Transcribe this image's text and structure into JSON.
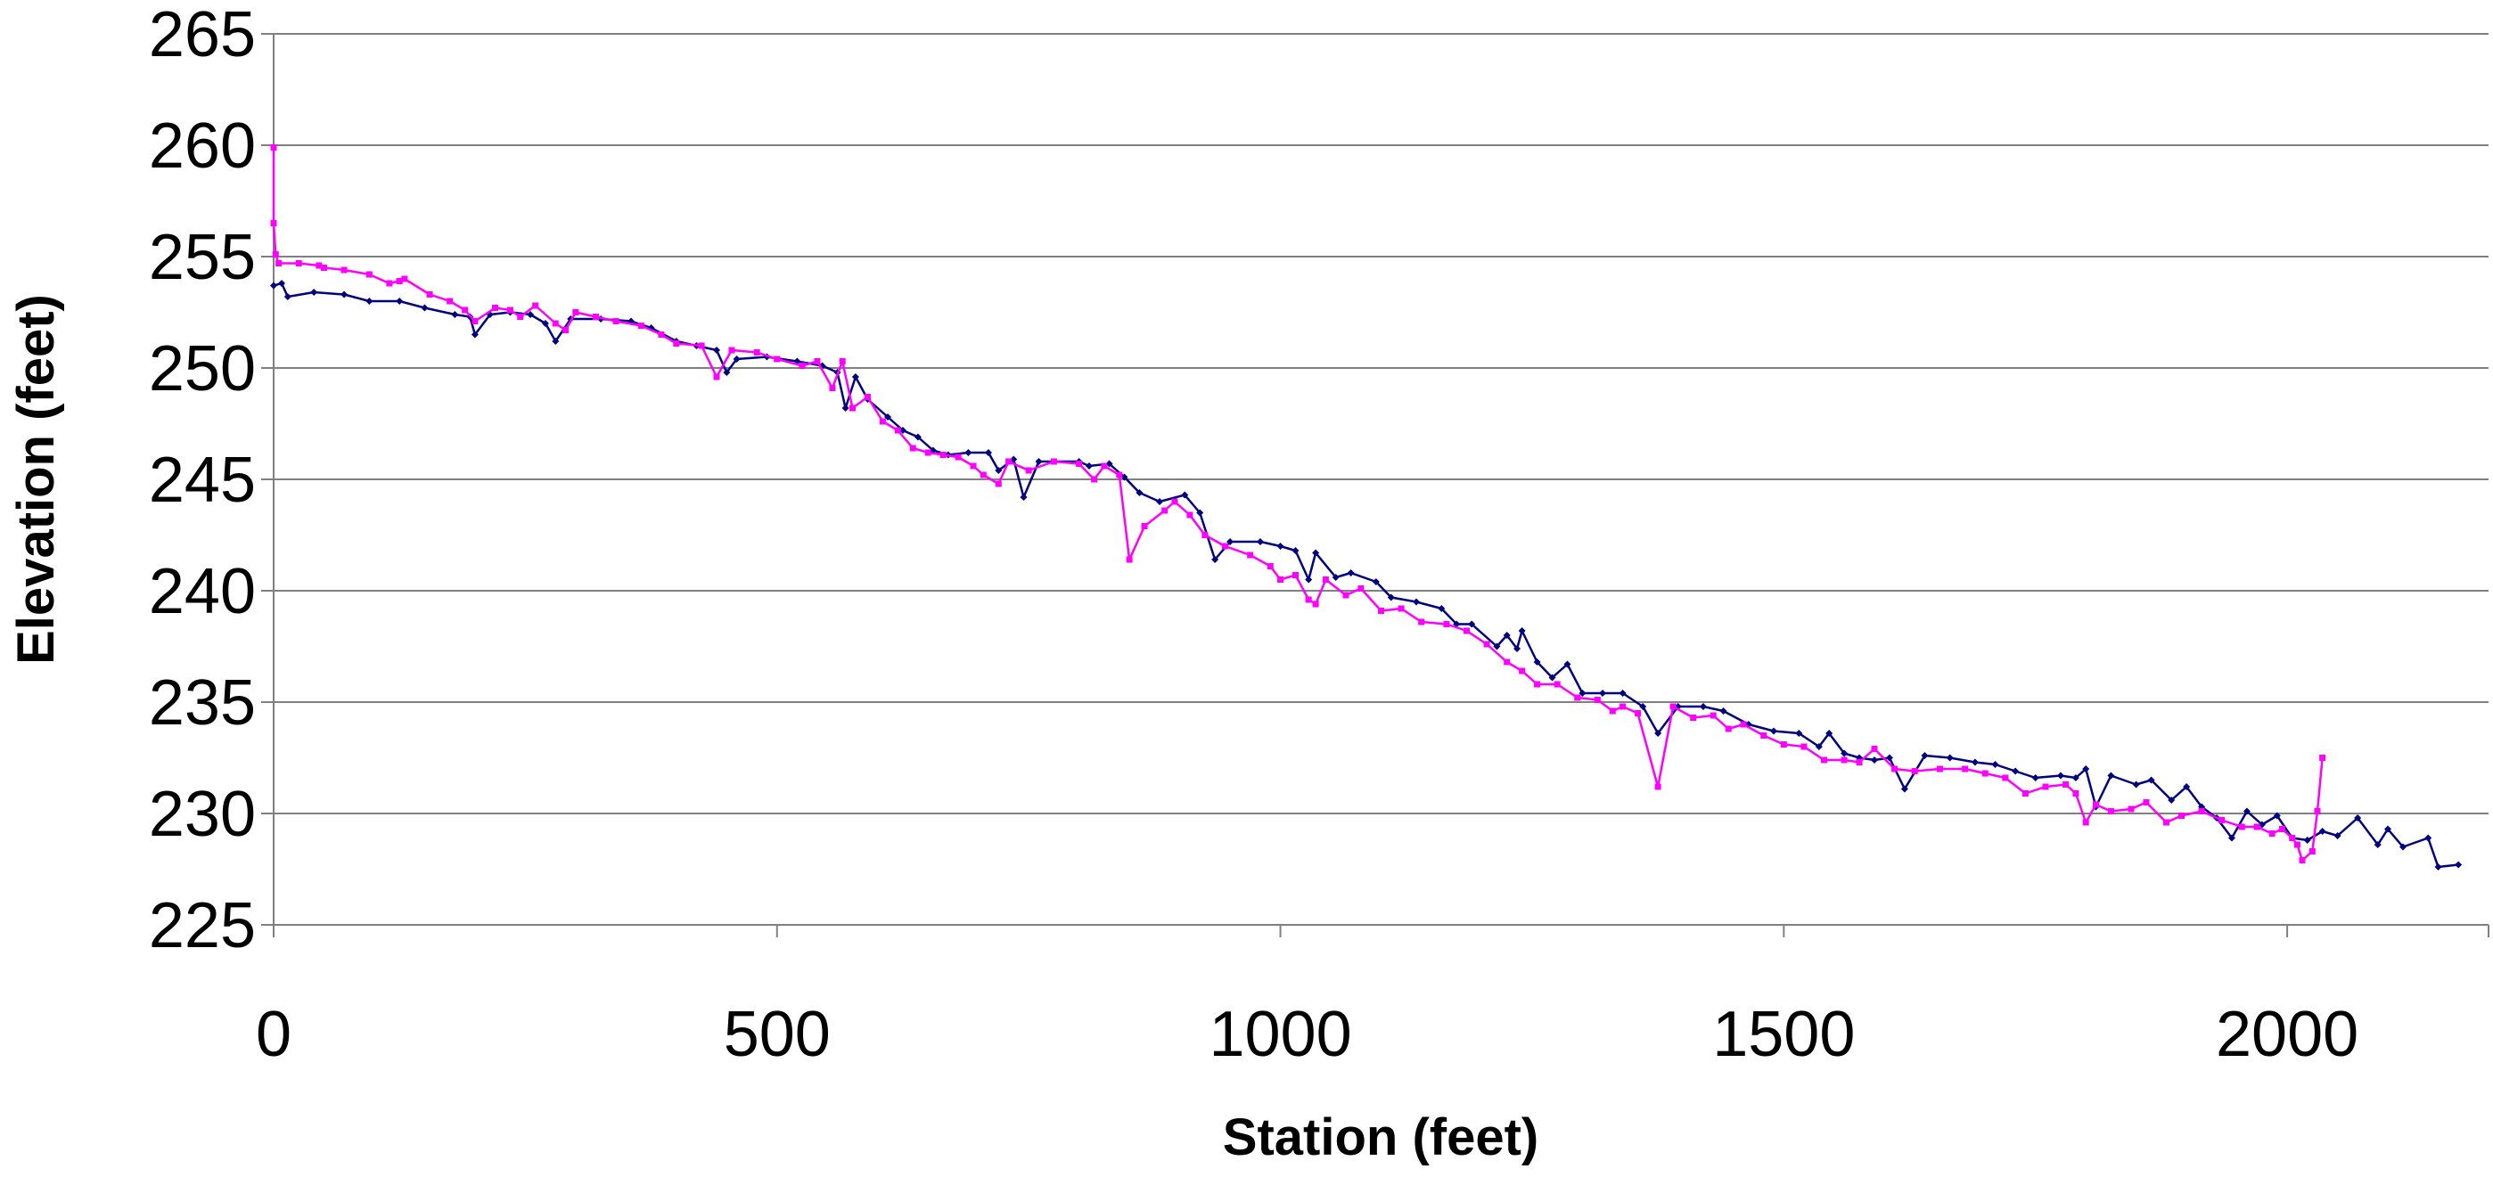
{
  "chart_data": {
    "type": "line",
    "title": "",
    "xlabel": "Station (feet)",
    "ylabel": "Elevation (feet)",
    "xlim": [
      0,
      2200
    ],
    "ylim": [
      225,
      265
    ],
    "x_ticks": [
      0,
      500,
      1000,
      1500,
      2000
    ],
    "y_ticks": [
      225,
      230,
      235,
      240,
      245,
      250,
      255,
      260,
      265
    ],
    "x_tick_labels": [
      "0",
      "500",
      "1000",
      "1500",
      "2000"
    ],
    "y_tick_labels": [
      "225",
      "230",
      "235",
      "240",
      "245",
      "250",
      "255",
      "260",
      "265"
    ],
    "grid": "horizontal",
    "legend": "none",
    "series": [
      {
        "color": "#000080",
        "marker": "diamond",
        "points": [
          [
            0,
            253.7
          ],
          [
            8,
            253.8
          ],
          [
            14,
            253.2
          ],
          [
            40,
            253.4
          ],
          [
            70,
            253.3
          ],
          [
            95,
            253.0
          ],
          [
            125,
            253.0
          ],
          [
            150,
            252.7
          ],
          [
            180,
            252.4
          ],
          [
            195,
            252.3
          ],
          [
            200,
            251.5
          ],
          [
            215,
            252.4
          ],
          [
            235,
            252.5
          ],
          [
            255,
            252.4
          ],
          [
            270,
            252.0
          ],
          [
            280,
            251.2
          ],
          [
            295,
            252.2
          ],
          [
            325,
            252.2
          ],
          [
            355,
            252.1
          ],
          [
            375,
            251.8
          ],
          [
            400,
            251.2
          ],
          [
            420,
            251.0
          ],
          [
            440,
            250.8
          ],
          [
            450,
            249.8
          ],
          [
            460,
            250.4
          ],
          [
            490,
            250.5
          ],
          [
            520,
            250.3
          ],
          [
            545,
            250.1
          ],
          [
            560,
            249.8
          ],
          [
            568,
            248.2
          ],
          [
            578,
            249.6
          ],
          [
            590,
            248.6
          ],
          [
            610,
            247.8
          ],
          [
            625,
            247.2
          ],
          [
            640,
            246.9
          ],
          [
            655,
            246.3
          ],
          [
            670,
            246.1
          ],
          [
            690,
            246.2
          ],
          [
            710,
            246.2
          ],
          [
            720,
            245.4
          ],
          [
            735,
            245.9
          ],
          [
            745,
            244.2
          ],
          [
            760,
            245.8
          ],
          [
            800,
            245.8
          ],
          [
            810,
            245.6
          ],
          [
            830,
            245.7
          ],
          [
            845,
            245.1
          ],
          [
            860,
            244.4
          ],
          [
            880,
            244.0
          ],
          [
            905,
            244.3
          ],
          [
            920,
            243.5
          ],
          [
            935,
            241.4
          ],
          [
            950,
            242.2
          ],
          [
            980,
            242.2
          ],
          [
            1000,
            242.0
          ],
          [
            1015,
            241.8
          ],
          [
            1028,
            240.5
          ],
          [
            1035,
            241.7
          ],
          [
            1055,
            240.6
          ],
          [
            1070,
            240.8
          ],
          [
            1095,
            240.4
          ],
          [
            1110,
            239.7
          ],
          [
            1135,
            239.5
          ],
          [
            1160,
            239.2
          ],
          [
            1175,
            238.5
          ],
          [
            1190,
            238.5
          ],
          [
            1215,
            237.5
          ],
          [
            1225,
            238.0
          ],
          [
            1235,
            237.4
          ],
          [
            1240,
            238.2
          ],
          [
            1255,
            236.8
          ],
          [
            1270,
            236.1
          ],
          [
            1285,
            236.7
          ],
          [
            1300,
            235.4
          ],
          [
            1320,
            235.4
          ],
          [
            1340,
            235.4
          ],
          [
            1360,
            234.8
          ],
          [
            1375,
            233.6
          ],
          [
            1395,
            234.8
          ],
          [
            1420,
            234.8
          ],
          [
            1440,
            234.6
          ],
          [
            1465,
            234.0
          ],
          [
            1490,
            233.7
          ],
          [
            1515,
            233.6
          ],
          [
            1535,
            233.0
          ],
          [
            1545,
            233.6
          ],
          [
            1560,
            232.7
          ],
          [
            1575,
            232.5
          ],
          [
            1590,
            232.4
          ],
          [
            1605,
            232.5
          ],
          [
            1620,
            231.1
          ],
          [
            1640,
            232.6
          ],
          [
            1665,
            232.5
          ],
          [
            1690,
            232.3
          ],
          [
            1710,
            232.2
          ],
          [
            1730,
            231.9
          ],
          [
            1750,
            231.6
          ],
          [
            1775,
            231.7
          ],
          [
            1790,
            231.6
          ],
          [
            1800,
            232.0
          ],
          [
            1810,
            230.3
          ],
          [
            1825,
            231.7
          ],
          [
            1850,
            231.3
          ],
          [
            1865,
            231.5
          ],
          [
            1885,
            230.6
          ],
          [
            1900,
            231.2
          ],
          [
            1915,
            230.3
          ],
          [
            1930,
            229.8
          ],
          [
            1945,
            228.9
          ],
          [
            1960,
            230.1
          ],
          [
            1975,
            229.5
          ],
          [
            1990,
            229.9
          ],
          [
            2005,
            228.9
          ],
          [
            2020,
            228.8
          ],
          [
            2035,
            229.2
          ],
          [
            2050,
            229.0
          ],
          [
            2070,
            229.8
          ],
          [
            2090,
            228.6
          ],
          [
            2100,
            229.3
          ],
          [
            2115,
            228.5
          ],
          [
            2140,
            228.9
          ],
          [
            2150,
            227.6
          ],
          [
            2170,
            227.7
          ]
        ]
      },
      {
        "color": "#FF00FF",
        "marker": "square",
        "points": [
          [
            0,
            259.9
          ],
          [
            0,
            256.5
          ],
          [
            2,
            255.1
          ],
          [
            5,
            254.7
          ],
          [
            25,
            254.7
          ],
          [
            45,
            254.6
          ],
          [
            50,
            254.5
          ],
          [
            70,
            254.4
          ],
          [
            95,
            254.2
          ],
          [
            115,
            253.8
          ],
          [
            125,
            253.9
          ],
          [
            130,
            254.0
          ],
          [
            155,
            253.3
          ],
          [
            175,
            253.0
          ],
          [
            190,
            252.6
          ],
          [
            200,
            252.1
          ],
          [
            220,
            252.7
          ],
          [
            235,
            252.6
          ],
          [
            245,
            252.3
          ],
          [
            260,
            252.8
          ],
          [
            280,
            252.0
          ],
          [
            290,
            251.7
          ],
          [
            300,
            252.5
          ],
          [
            320,
            252.3
          ],
          [
            340,
            252.1
          ],
          [
            365,
            251.9
          ],
          [
            385,
            251.5
          ],
          [
            400,
            251.1
          ],
          [
            425,
            251.0
          ],
          [
            440,
            249.6
          ],
          [
            455,
            250.8
          ],
          [
            480,
            250.7
          ],
          [
            500,
            250.4
          ],
          [
            525,
            250.1
          ],
          [
            540,
            250.3
          ],
          [
            555,
            249.1
          ],
          [
            565,
            250.3
          ],
          [
            575,
            248.2
          ],
          [
            590,
            248.7
          ],
          [
            605,
            247.6
          ],
          [
            620,
            247.2
          ],
          [
            635,
            246.4
          ],
          [
            650,
            246.2
          ],
          [
            665,
            246.1
          ],
          [
            680,
            246.0
          ],
          [
            695,
            245.6
          ],
          [
            705,
            245.2
          ],
          [
            720,
            244.8
          ],
          [
            730,
            245.8
          ],
          [
            750,
            245.4
          ],
          [
            775,
            245.8
          ],
          [
            800,
            245.7
          ],
          [
            815,
            245.0
          ],
          [
            825,
            245.6
          ],
          [
            840,
            245.2
          ],
          [
            850,
            241.4
          ],
          [
            865,
            242.9
          ],
          [
            885,
            243.6
          ],
          [
            895,
            244.0
          ],
          [
            910,
            243.4
          ],
          [
            925,
            242.5
          ],
          [
            945,
            242.0
          ],
          [
            970,
            241.6
          ],
          [
            990,
            241.1
          ],
          [
            1000,
            240.5
          ],
          [
            1015,
            240.7
          ],
          [
            1028,
            239.6
          ],
          [
            1035,
            239.4
          ],
          [
            1045,
            240.5
          ],
          [
            1065,
            239.8
          ],
          [
            1080,
            240.1
          ],
          [
            1100,
            239.1
          ],
          [
            1120,
            239.2
          ],
          [
            1140,
            238.6
          ],
          [
            1165,
            238.5
          ],
          [
            1185,
            238.2
          ],
          [
            1205,
            237.6
          ],
          [
            1225,
            236.8
          ],
          [
            1240,
            236.4
          ],
          [
            1255,
            235.8
          ],
          [
            1275,
            235.8
          ],
          [
            1295,
            235.2
          ],
          [
            1315,
            235.1
          ],
          [
            1330,
            234.6
          ],
          [
            1340,
            234.8
          ],
          [
            1355,
            234.5
          ],
          [
            1375,
            231.2
          ],
          [
            1390,
            234.8
          ],
          [
            1410,
            234.3
          ],
          [
            1430,
            234.4
          ],
          [
            1445,
            233.8
          ],
          [
            1460,
            234.0
          ],
          [
            1480,
            233.5
          ],
          [
            1500,
            233.1
          ],
          [
            1520,
            233.0
          ],
          [
            1540,
            232.4
          ],
          [
            1560,
            232.4
          ],
          [
            1575,
            232.3
          ],
          [
            1590,
            232.9
          ],
          [
            1610,
            232.0
          ],
          [
            1630,
            231.9
          ],
          [
            1655,
            232.0
          ],
          [
            1680,
            232.0
          ],
          [
            1700,
            231.8
          ],
          [
            1720,
            231.6
          ],
          [
            1740,
            230.9
          ],
          [
            1760,
            231.2
          ],
          [
            1780,
            231.3
          ],
          [
            1790,
            230.9
          ],
          [
            1800,
            229.6
          ],
          [
            1810,
            230.4
          ],
          [
            1825,
            230.1
          ],
          [
            1845,
            230.2
          ],
          [
            1860,
            230.5
          ],
          [
            1880,
            229.6
          ],
          [
            1895,
            229.9
          ],
          [
            1915,
            230.1
          ],
          [
            1935,
            229.7
          ],
          [
            1955,
            229.4
          ],
          [
            1970,
            229.4
          ],
          [
            1985,
            229.1
          ],
          [
            1995,
            229.3
          ],
          [
            2005,
            228.9
          ],
          [
            2010,
            228.6
          ],
          [
            2015,
            227.9
          ],
          [
            2025,
            228.3
          ],
          [
            2030,
            230.1
          ],
          [
            2035,
            232.5
          ]
        ]
      }
    ]
  }
}
